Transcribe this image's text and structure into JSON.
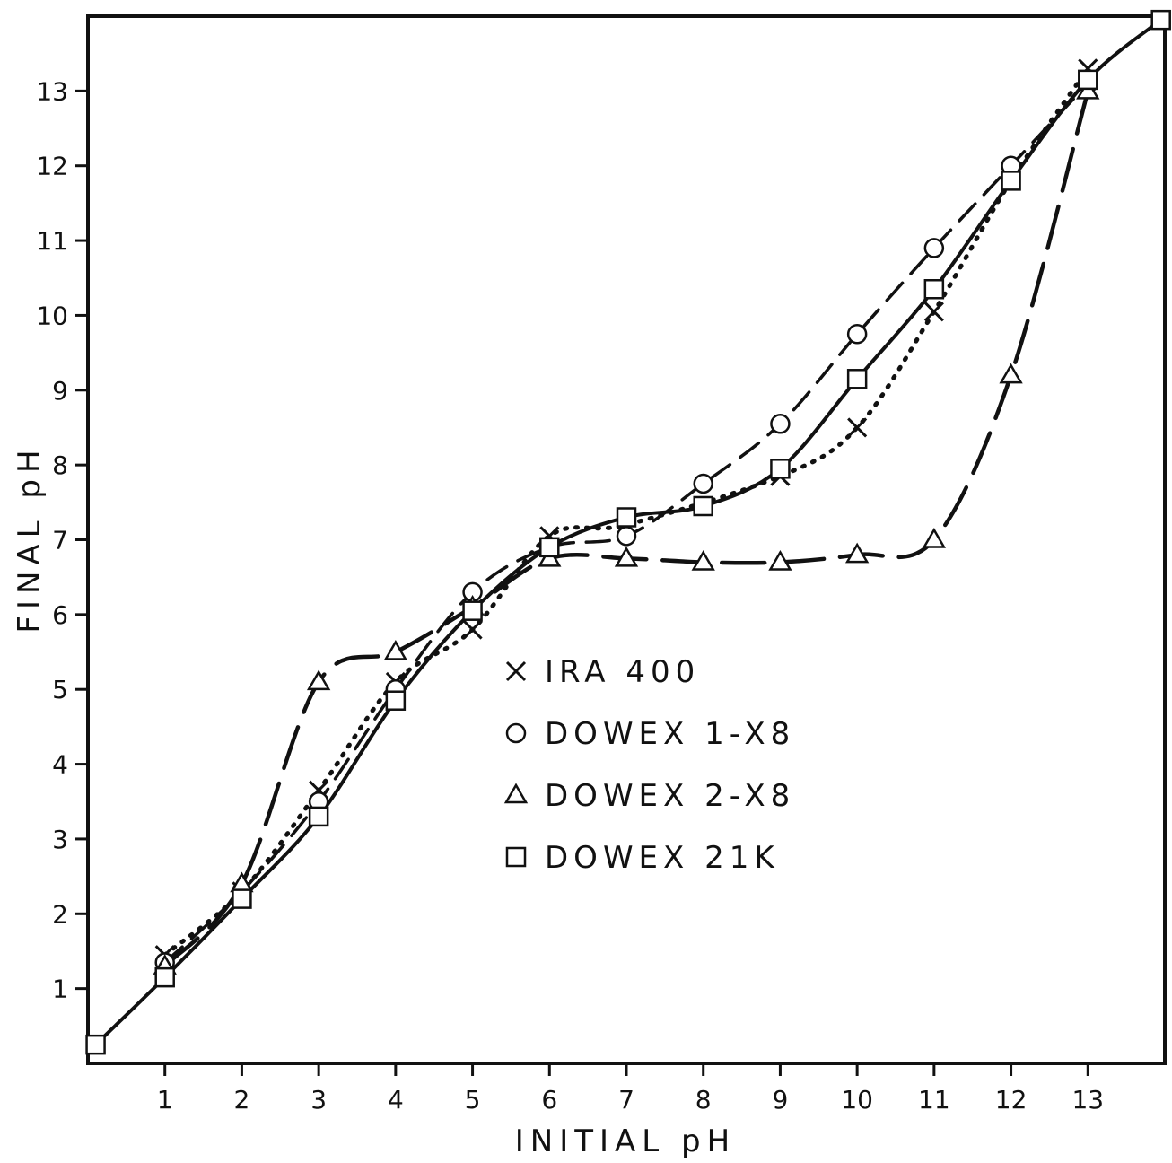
{
  "chart_data": {
    "type": "line",
    "xlabel": "INITIAL pH",
    "ylabel": "FINAL pH",
    "xlim": [
      0,
      14
    ],
    "ylim": [
      0,
      14
    ],
    "x_ticks": [
      1,
      2,
      3,
      4,
      5,
      6,
      7,
      8,
      9,
      10,
      11,
      12,
      13
    ],
    "y_ticks": [
      1,
      2,
      3,
      4,
      5,
      6,
      7,
      8,
      9,
      10,
      11,
      12,
      13
    ],
    "grid": false,
    "legend_position": "center",
    "series": [
      {
        "name": "IRA 400",
        "marker": "x",
        "line_style": "dotted",
        "points": [
          [
            1,
            1.45
          ],
          [
            2,
            2.3
          ],
          [
            3,
            3.65
          ],
          [
            4,
            5.1
          ],
          [
            5,
            5.8
          ],
          [
            6,
            7.05
          ],
          [
            7,
            7.2
          ],
          [
            9,
            7.85
          ],
          [
            10,
            8.5
          ],
          [
            11,
            10.05
          ],
          [
            12,
            11.8
          ],
          [
            13,
            13.3
          ]
        ]
      },
      {
        "name": "DOWEX 1-X8",
        "marker": "circle",
        "line_style": "dashed",
        "points": [
          [
            1,
            1.35
          ],
          [
            2,
            2.3
          ],
          [
            3,
            3.5
          ],
          [
            4,
            5.0
          ],
          [
            5,
            6.3
          ],
          [
            6,
            6.9
          ],
          [
            7,
            7.05
          ],
          [
            8,
            7.75
          ],
          [
            9,
            8.55
          ],
          [
            10,
            9.75
          ],
          [
            11,
            10.9
          ],
          [
            12,
            12.0
          ],
          [
            13,
            13.1
          ]
        ]
      },
      {
        "name": "DOWEX 2-X8",
        "marker": "triangle",
        "line_style": "long-dash",
        "points": [
          [
            1,
            1.3
          ],
          [
            2,
            2.4
          ],
          [
            3,
            5.1
          ],
          [
            4,
            5.5
          ],
          [
            5,
            6.1
          ],
          [
            6,
            6.75
          ],
          [
            7,
            6.75
          ],
          [
            8,
            6.7
          ],
          [
            9,
            6.7
          ],
          [
            10,
            6.8
          ],
          [
            11,
            7.0
          ],
          [
            12,
            9.2
          ],
          [
            13,
            13.0
          ]
        ]
      },
      {
        "name": "DOWEX 21K",
        "marker": "square",
        "line_style": "solid",
        "points": [
          [
            0.1,
            0.25
          ],
          [
            1,
            1.15
          ],
          [
            2,
            2.2
          ],
          [
            3,
            3.3
          ],
          [
            4,
            4.85
          ],
          [
            5,
            6.05
          ],
          [
            6,
            6.9
          ],
          [
            7,
            7.3
          ],
          [
            8,
            7.45
          ],
          [
            9,
            7.95
          ],
          [
            10,
            9.15
          ],
          [
            11,
            10.35
          ],
          [
            12,
            11.8
          ],
          [
            13,
            13.15
          ],
          [
            13.95,
            13.95
          ]
        ]
      }
    ]
  }
}
